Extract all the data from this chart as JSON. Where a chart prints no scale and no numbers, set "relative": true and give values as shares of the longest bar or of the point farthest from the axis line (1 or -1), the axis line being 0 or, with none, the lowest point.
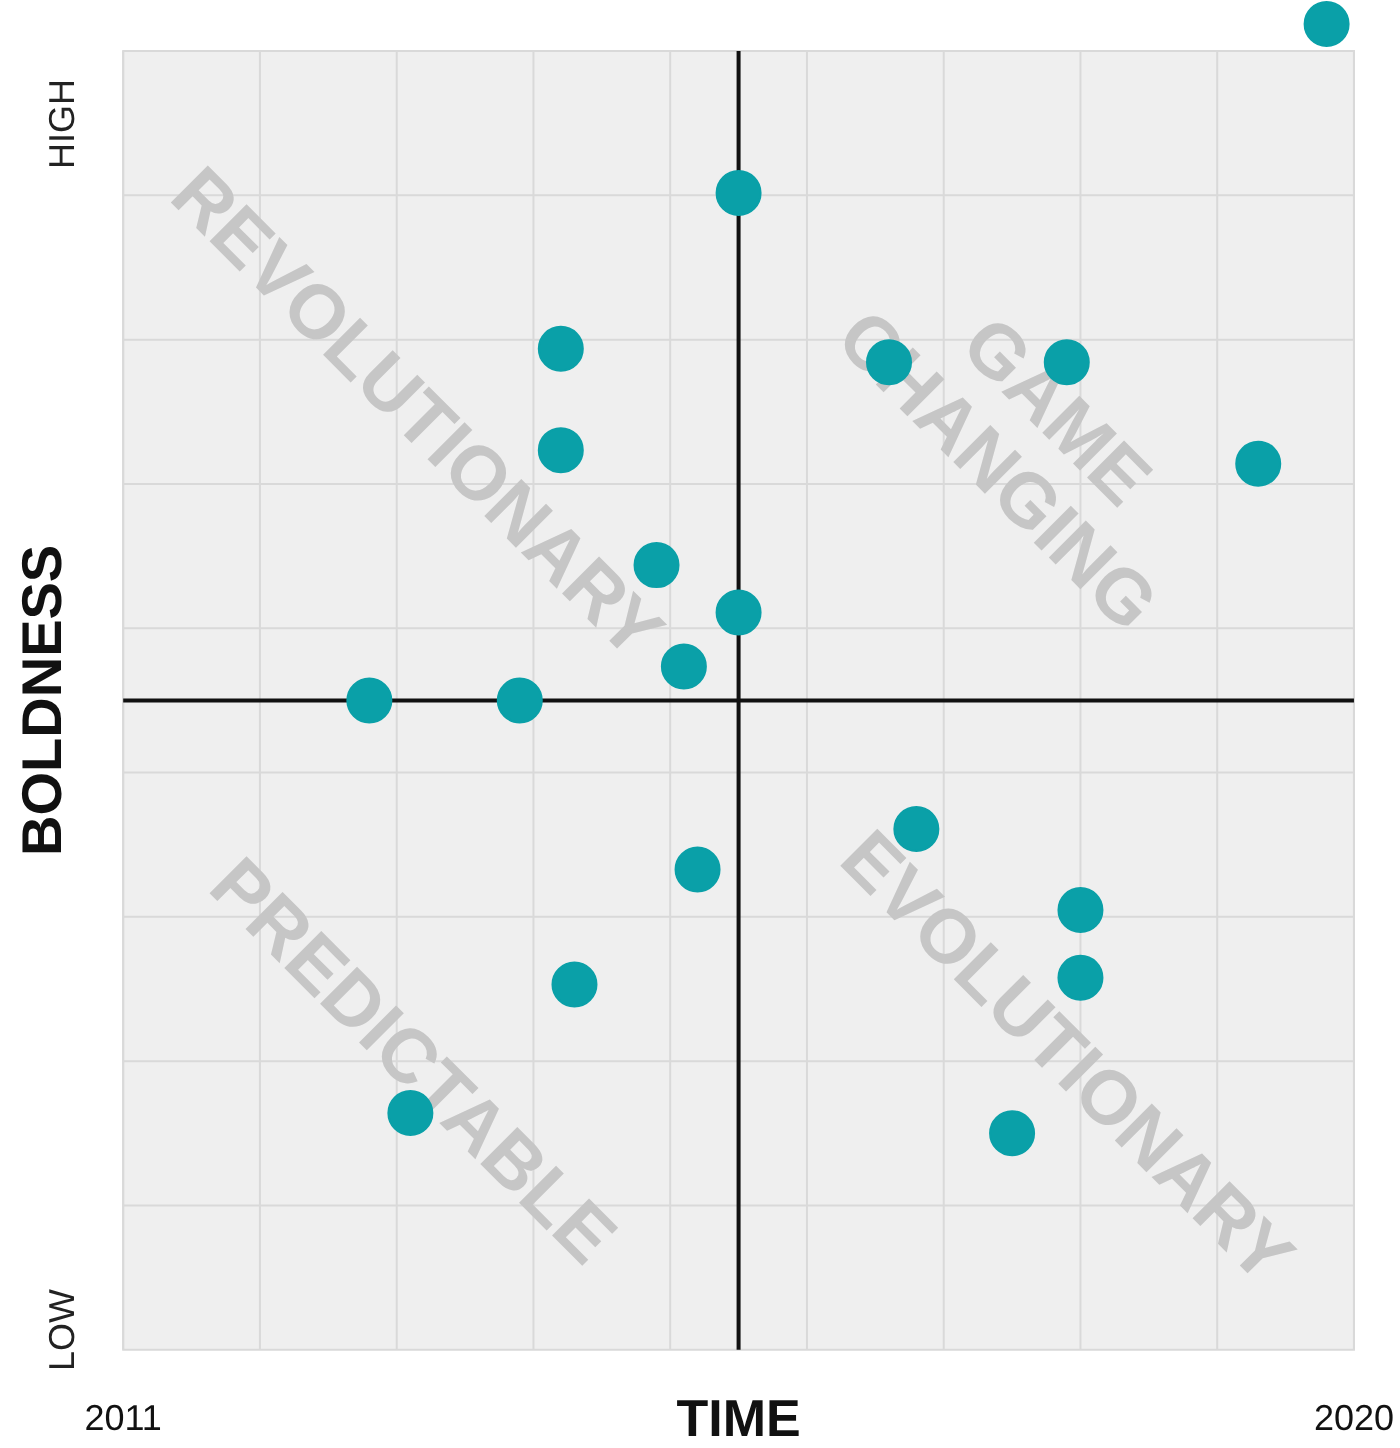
{
  "chart_data": {
    "type": "scatter",
    "xlabel": "TIME",
    "ylabel": "BOLDNESS",
    "relative": true,
    "x": [
      2019.8,
      2015.5,
      2014.2,
      2016.6,
      2017.9,
      2019.3,
      2014.2,
      2014.9,
      2015.5,
      2015.1,
      2012.8,
      2013.9,
      2016.8,
      2015.2,
      2018.0,
      2018.0,
      2014.3,
      2013.1,
      2017.5
    ],
    "values": [
      1.0,
      0.75,
      0.52,
      0.5,
      0.5,
      0.35,
      0.37,
      0.2,
      0.13,
      0.05,
      0,
      0,
      -0.19,
      -0.25,
      -0.31,
      -0.41,
      -0.42,
      -0.61,
      -0.64
    ],
    "color": "#0aa0a8",
    "marker": "circle",
    "grid": true,
    "legend": false,
    "xlim": [
      2011,
      2020
    ],
    "xticks": [
      2011,
      {
        "value": 2012,
        "label": null
      },
      {
        "value": 2013,
        "label": null
      },
      {
        "value": 2014,
        "label": null
      },
      {
        "value": 2015,
        "label": null
      },
      {
        "value": 2016,
        "label": null
      },
      {
        "value": 2017,
        "label": null
      },
      {
        "value": 2018,
        "label": null
      },
      {
        "value": 2019,
        "label": null
      },
      2020
    ],
    "ref_lines": [
      {
        "axis": "x",
        "value": 2015.5
      }
    ],
    "annotations": [
      "HIGH",
      "LOW",
      "REVOLUTIONARY",
      "GAME CHANGING",
      "PREDICTABLE",
      "EVOLUTIONARY"
    ]
  }
}
